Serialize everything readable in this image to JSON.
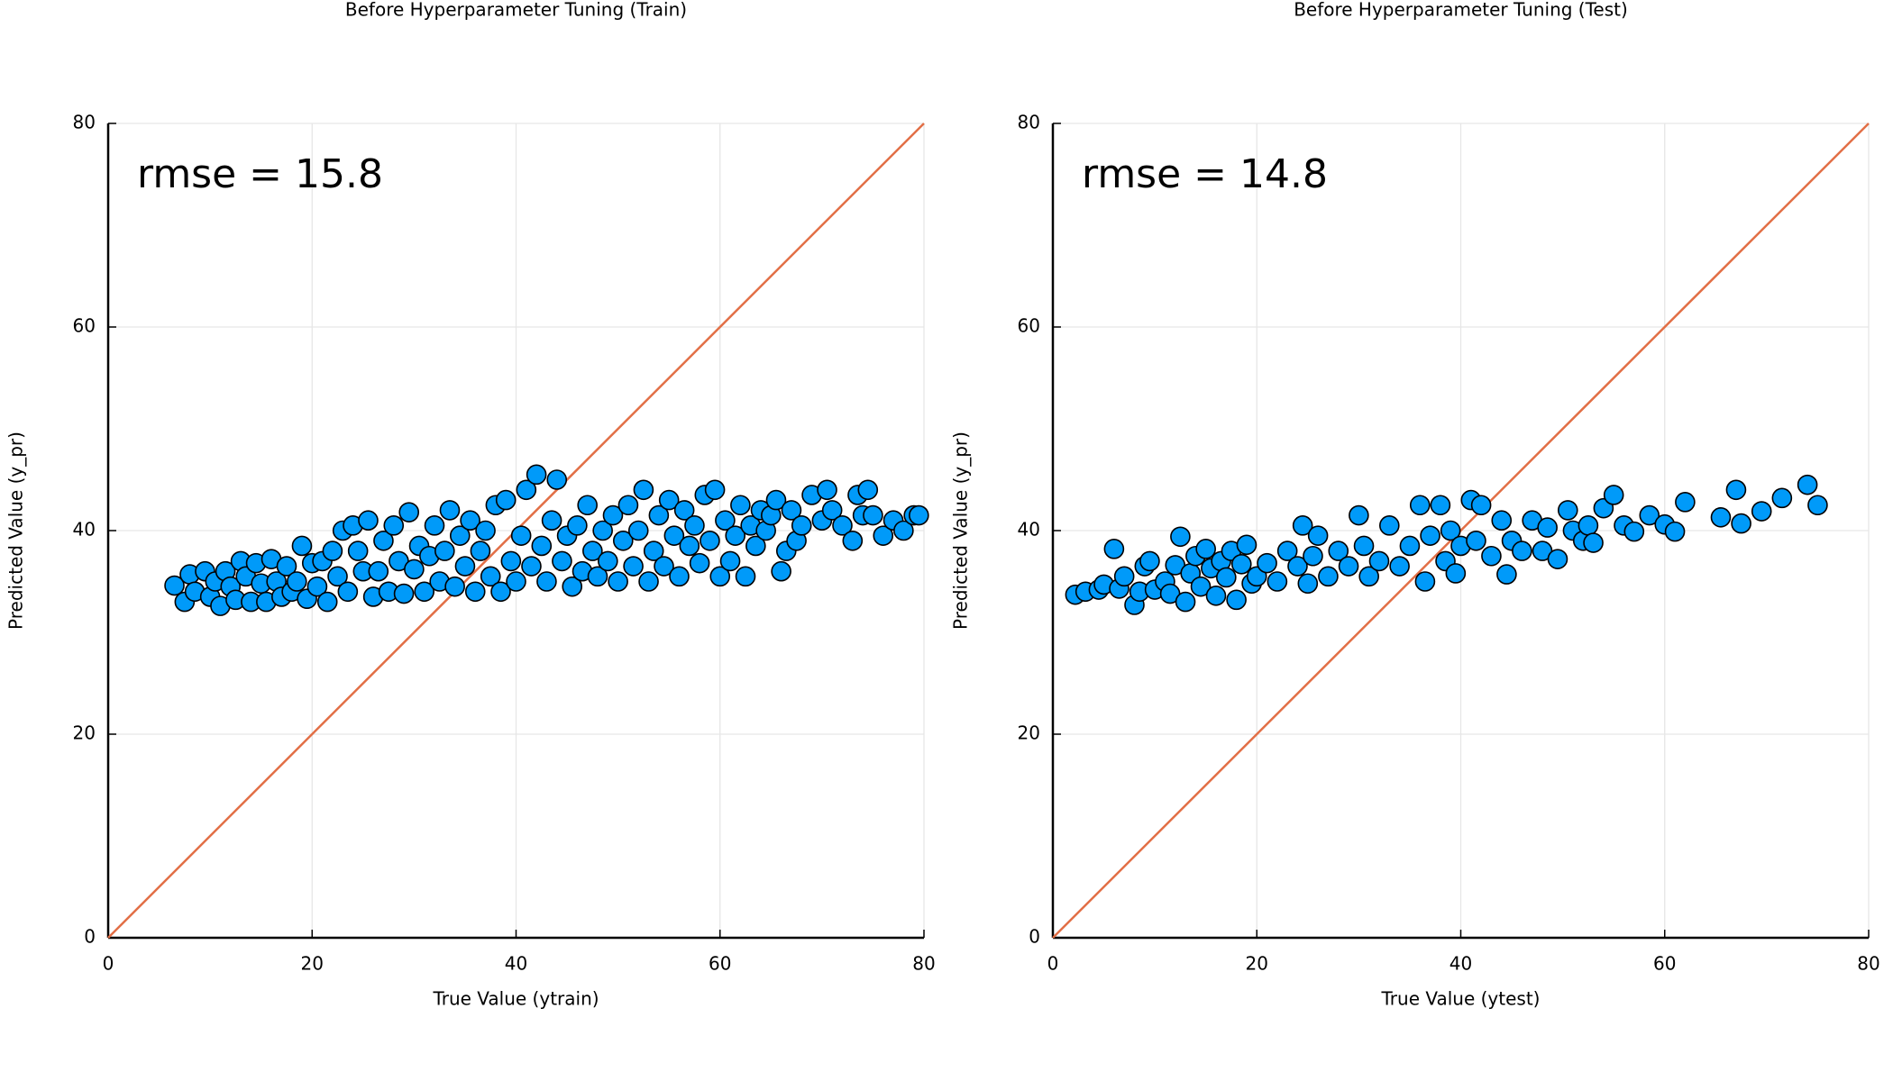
{
  "chart_data": [
    {
      "type": "scatter",
      "title": "Before Hyperparameter Tuning (Train)",
      "x_label": "True Value (ytrain)",
      "y_label": "Predicted Value (y_pr)",
      "annotation": "rmse = 15.8",
      "color": "#009af9",
      "grid": true,
      "xlim": [
        0,
        80
      ],
      "ylim": [
        0,
        80
      ],
      "xticks": [
        0,
        20,
        40,
        60,
        80
      ],
      "yticks": [
        0,
        20,
        40,
        60,
        80
      ],
      "line": {
        "x": [
          0,
          80
        ],
        "y": [
          0,
          80
        ],
        "color": "#e26f46"
      },
      "x": [
        6.5,
        7.5,
        8,
        8.5,
        9.5,
        10,
        10.5,
        11,
        11.5,
        12,
        12.5,
        13,
        13.5,
        14,
        14.5,
        15,
        15.5,
        16,
        16.5,
        17,
        17.5,
        18,
        18.5,
        19,
        19.5,
        20,
        20.5,
        21,
        21.5,
        22,
        22.5,
        23,
        23.5,
        24,
        24.5,
        25,
        25.5,
        26,
        26.5,
        27,
        27.5,
        28,
        28.5,
        29,
        29.5,
        30,
        30.5,
        31,
        31.5,
        32,
        32.5,
        33,
        33.5,
        34,
        34.5,
        35,
        35.5,
        36,
        36.5,
        37,
        37.5,
        38,
        38.5,
        39,
        39.5,
        40,
        40.5,
        41,
        41.5,
        42,
        42.5,
        43,
        43.5,
        44,
        44.5,
        45,
        45.5,
        46,
        46.5,
        47,
        47.5,
        48,
        48.5,
        49,
        49.5,
        50,
        50.5,
        51,
        51.5,
        52,
        52.5,
        53,
        53.5,
        54,
        54.5,
        55,
        55.5,
        56,
        56.5,
        57,
        57.5,
        58,
        58.5,
        59,
        59.5,
        60,
        60.5,
        61,
        61.5,
        62,
        62.5,
        63,
        63.5,
        64,
        64.5,
        65,
        65.5,
        66,
        66.5,
        67,
        67.5,
        68,
        69,
        70,
        70.5,
        71,
        72,
        73,
        73.5,
        74,
        74.5,
        75,
        76,
        77,
        78,
        79,
        79.5
      ],
      "y": [
        34.6,
        33,
        35.7,
        34,
        36,
        33.5,
        35,
        32.6,
        36,
        34.5,
        33.2,
        37,
        35.5,
        33,
        36.8,
        34.8,
        33,
        37.2,
        35,
        33.5,
        36.5,
        34,
        35,
        38.5,
        33.3,
        36.8,
        34.5,
        37,
        33,
        38,
        35.5,
        40,
        34,
        40.5,
        38,
        36,
        41,
        33.5,
        36,
        39,
        34,
        40.5,
        37,
        33.8,
        41.8,
        36.2,
        38.5,
        34,
        37.5,
        40.5,
        35,
        38,
        42,
        34.5,
        39.5,
        36.5,
        41,
        34,
        38,
        40,
        35.5,
        42.5,
        34,
        43,
        37,
        35,
        39.5,
        44,
        36.5,
        45.5,
        38.5,
        35,
        41,
        45,
        37,
        39.5,
        34.5,
        40.5,
        36,
        42.5,
        38,
        35.5,
        40,
        37,
        41.5,
        35,
        39,
        42.5,
        36.5,
        40,
        44,
        35,
        38,
        41.5,
        36.5,
        43,
        39.5,
        35.5,
        42,
        38.5,
        40.5,
        36.8,
        43.5,
        39,
        44,
        35.5,
        41,
        37,
        39.5,
        42.5,
        35.5,
        40.5,
        38.5,
        42,
        40,
        41.5,
        43,
        36,
        38,
        42,
        39,
        40.5,
        43.5,
        41,
        44,
        42,
        40.5,
        39,
        43.5,
        41.5,
        44,
        41.5,
        39.5,
        41,
        40,
        41.5,
        41.5
      ]
    },
    {
      "type": "scatter",
      "title": "Before Hyperparameter Tuning (Test)",
      "x_label": "True Value (ytest)",
      "y_label": "Predicted Value (y_pr)",
      "annotation": "rmse = 14.8",
      "color": "#009af9",
      "grid": true,
      "xlim": [
        0,
        80
      ],
      "ylim": [
        0,
        80
      ],
      "xticks": [
        0,
        20,
        40,
        60,
        80
      ],
      "yticks": [
        0,
        20,
        40,
        60,
        80
      ],
      "line": {
        "x": [
          0,
          80
        ],
        "y": [
          0,
          80
        ],
        "color": "#e26f46"
      },
      "x": [
        2.2,
        3.2,
        4.5,
        5,
        6,
        6.5,
        7,
        8,
        8.5,
        9,
        9.5,
        10,
        11,
        11.5,
        12,
        12.5,
        13,
        13.5,
        14,
        14.5,
        15,
        15.5,
        16,
        16.5,
        17,
        17.5,
        18,
        18.5,
        19,
        19.5,
        20,
        21,
        22,
        23,
        24,
        24.5,
        25,
        25.5,
        26,
        27,
        28,
        29,
        30,
        30.5,
        31,
        32,
        33,
        34,
        35,
        36,
        36.5,
        37,
        38,
        38.5,
        39,
        39.5,
        40,
        41,
        41.5,
        42,
        43,
        44,
        44.5,
        45,
        46,
        47,
        48,
        48.5,
        49.5,
        50.5,
        51,
        52,
        52.5,
        53,
        54,
        55,
        56,
        57,
        58.5,
        60,
        61,
        62,
        65.5,
        67,
        67.5,
        69.5,
        71.5,
        74,
        75
      ],
      "y": [
        33.7,
        34,
        34.2,
        34.7,
        38.2,
        34.3,
        35.5,
        32.7,
        34,
        36.5,
        37,
        34.2,
        35,
        33.8,
        36.6,
        39.4,
        33,
        35.8,
        37.5,
        34.5,
        38.2,
        36.3,
        33.6,
        37,
        35.4,
        38,
        33.2,
        36.7,
        38.6,
        34.8,
        35.5,
        36.8,
        35,
        38,
        36.5,
        40.5,
        34.8,
        37.5,
        39.5,
        35.5,
        38,
        36.5,
        41.5,
        38.5,
        35.5,
        37,
        40.5,
        36.5,
        38.5,
        42.5,
        35,
        39.5,
        42.5,
        37,
        40,
        35.8,
        38.5,
        43,
        39,
        42.5,
        37.5,
        41,
        35.7,
        39,
        38,
        41,
        38,
        40.3,
        37.2,
        42,
        40,
        39,
        40.5,
        38.8,
        42.2,
        43.5,
        40.5,
        39.9,
        41.5,
        40.6,
        39.9,
        42.8,
        41.3,
        44,
        40.7,
        41.9,
        43.2,
        44.5,
        42.5
      ]
    }
  ]
}
